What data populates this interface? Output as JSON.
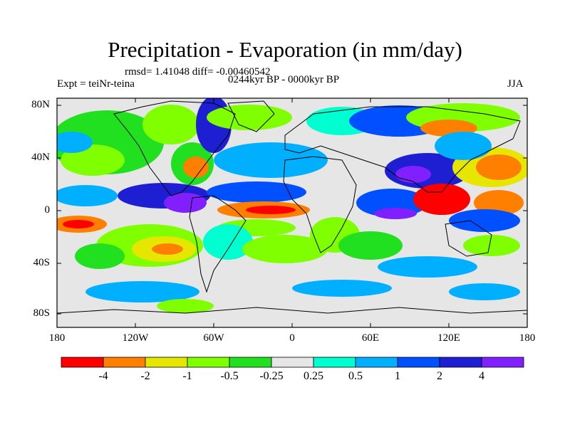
{
  "title": "Precipitation - Evaporation (in mm/day)",
  "stats": "rmsd= 1.41048 diff= -0.00460542",
  "experiment": "Expt = teiNr-teina",
  "period": "0244kyr BP - 0000kyr BP",
  "season": "JJA",
  "lat_labels": [
    "80N",
    "40N",
    "0",
    "40S",
    "80S"
  ],
  "lon_labels": [
    "180",
    "120W",
    "60W",
    "0",
    "60E",
    "120E",
    "180"
  ],
  "colorbar": {
    "colors": [
      "#ff0000",
      "#ff8000",
      "#e6e600",
      "#80ff00",
      "#20e020",
      "#e6e6e6",
      "#00ffd0",
      "#00b0ff",
      "#0050ff",
      "#1e1ed2",
      "#8020ff"
    ],
    "labels": [
      "-4",
      "-2",
      "-1",
      "-0.5",
      "-0.25",
      "0.25",
      "0.5",
      "1",
      "2",
      "4"
    ]
  }
}
